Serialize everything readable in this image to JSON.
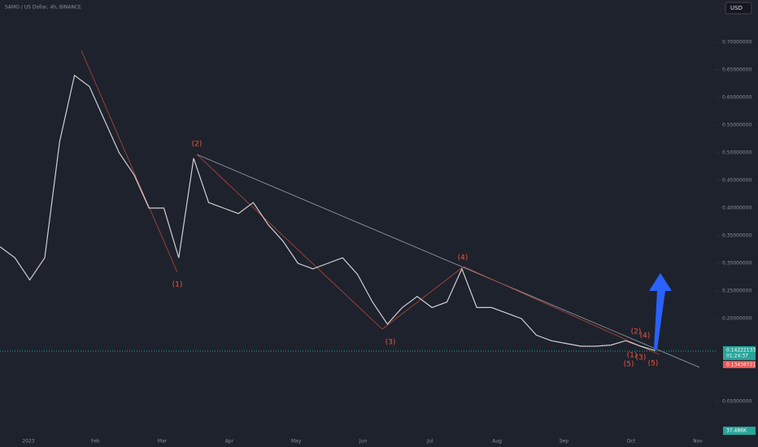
{
  "header": {
    "symbol": "SAMO / US Dollar, 4h, BINANCE",
    "currency": "USD"
  },
  "chart_data": {
    "type": "line",
    "color": "#d0d0d0",
    "values": [
      0.33,
      0.31,
      0.27,
      0.31,
      0.52,
      0.64,
      0.62,
      0.56,
      0.5,
      0.46,
      0.4,
      0.4,
      0.31,
      0.49,
      0.41,
      0.4,
      0.39,
      0.41,
      0.37,
      0.34,
      0.3,
      0.29,
      0.3,
      0.31,
      0.28,
      0.23,
      0.19,
      0.22,
      0.24,
      0.22,
      0.23,
      0.29,
      0.22,
      0.22,
      0.21,
      0.2,
      0.17,
      0.16,
      0.155,
      0.15,
      0.15,
      0.152,
      0.16,
      0.15,
      0.142
    ],
    "ylim": [
      0,
      0.75
    ],
    "yticks": [
      {
        "value": 0.7,
        "label": "0.70000000"
      },
      {
        "value": 0.65,
        "label": "0.65000000"
      },
      {
        "value": 0.6,
        "label": "0.60000000"
      },
      {
        "value": 0.55,
        "label": "0.55000000"
      },
      {
        "value": 0.5,
        "label": "0.50000000"
      },
      {
        "value": 0.45,
        "label": "0.45000000"
      },
      {
        "value": 0.4,
        "label": "0.40000000"
      },
      {
        "value": 0.35,
        "label": "0.35000000"
      },
      {
        "value": 0.3,
        "label": "0.30000000"
      },
      {
        "value": 0.25,
        "label": "0.25000000"
      },
      {
        "value": 0.2,
        "label": "0.20000000"
      },
      {
        "value": 0.05,
        "label": "0.05000000"
      }
    ],
    "xlabels": [
      "2023",
      "Feb",
      "Mar",
      "Apr",
      "May",
      "Jun",
      "Jul",
      "Aug",
      "Sep",
      "Oct",
      "Nov"
    ],
    "waves": [
      "(1)",
      "(2)",
      "(3)",
      "(4)",
      "(5)",
      "(1)",
      "(2)",
      "(3)",
      "(4)",
      "(5)"
    ],
    "price": {
      "value": 0.14222133,
      "label": "0.14222133",
      "countdown": "01:24:37"
    },
    "low_label": "0.13436721",
    "volume_label": "37.486K"
  }
}
